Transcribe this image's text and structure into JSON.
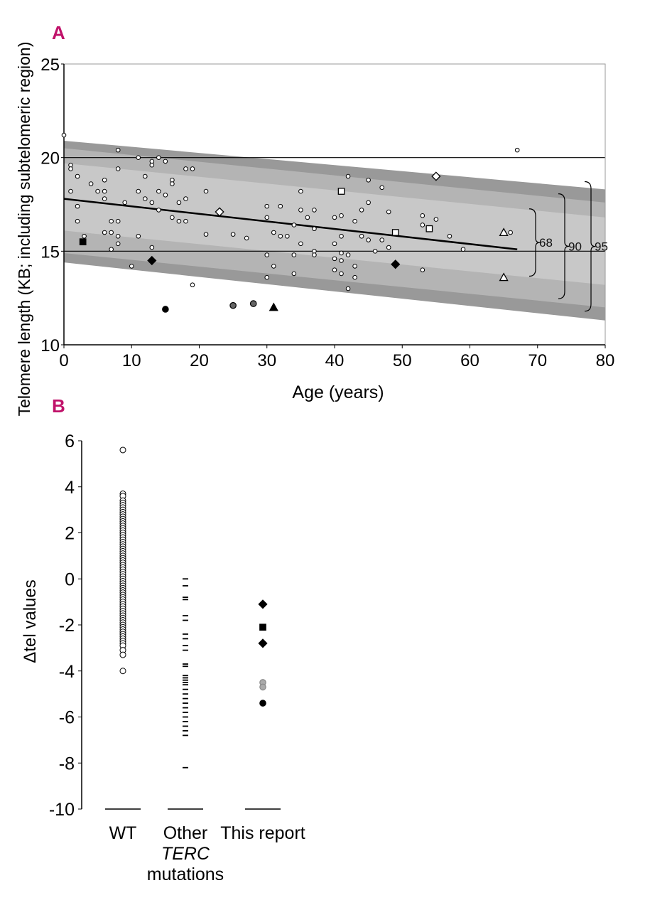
{
  "chart_data": [
    {
      "panel": "A",
      "type": "scatter",
      "xlabel": "Age (years)",
      "ylabel": "Telomere length (KB; including subtelomeric region)",
      "xlim": [
        0,
        80
      ],
      "ylim": [
        10,
        25
      ],
      "xticks": [
        "0",
        "10",
        "20",
        "30",
        "40",
        "50",
        "60",
        "70",
        "80"
      ],
      "yticks": [
        "10",
        "15",
        "20",
        "25"
      ],
      "reference_lines_y": [
        15,
        20
      ],
      "regression_line": {
        "x": [
          0,
          67
        ],
        "y": [
          17.8,
          15.1
        ]
      },
      "percentile_bands": [
        {
          "label": "68",
          "start": [
            0,
            19.7,
            16.1
          ],
          "end": [
            80,
            16.8,
            13.2
          ]
        },
        {
          "label": "90",
          "start": [
            0,
            20.5,
            14.9
          ],
          "end": [
            80,
            17.6,
            12.0
          ]
        },
        {
          "label": "95",
          "start": [
            0,
            20.9,
            14.4
          ],
          "end": [
            80,
            18.3,
            11.3
          ]
        }
      ],
      "band_colors": [
        "#c8c8c8",
        "#b4b4b4",
        "#999999"
      ],
      "bracket_labels": [
        "68",
        "90",
        "95"
      ],
      "wild_type_points": [
        [
          0,
          21.2
        ],
        [
          1,
          19.6
        ],
        [
          1,
          19.4
        ],
        [
          1,
          18.2
        ],
        [
          2,
          17.4
        ],
        [
          2,
          16.6
        ],
        [
          2,
          19.0
        ],
        [
          3,
          15.8
        ],
        [
          4,
          18.6
        ],
        [
          5,
          18.2
        ],
        [
          6,
          18.8
        ],
        [
          6,
          18.2
        ],
        [
          6,
          17.8
        ],
        [
          6,
          16.0
        ],
        [
          7,
          16.6
        ],
        [
          7,
          16.0
        ],
        [
          7,
          15.1
        ],
        [
          8,
          20.4
        ],
        [
          8,
          19.4
        ],
        [
          8,
          16.6
        ],
        [
          8,
          15.8
        ],
        [
          8,
          15.4
        ],
        [
          9,
          17.6
        ],
        [
          10,
          14.2
        ],
        [
          11,
          20.0
        ],
        [
          11,
          18.2
        ],
        [
          11,
          15.8
        ],
        [
          12,
          19.0
        ],
        [
          12,
          17.8
        ],
        [
          13,
          19.8
        ],
        [
          13,
          19.6
        ],
        [
          13,
          17.6
        ],
        [
          13,
          15.2
        ],
        [
          14,
          20.0
        ],
        [
          14,
          18.2
        ],
        [
          14,
          17.2
        ],
        [
          15,
          19.8
        ],
        [
          15,
          18.0
        ],
        [
          16,
          18.8
        ],
        [
          16,
          18.6
        ],
        [
          16,
          16.8
        ],
        [
          17,
          17.6
        ],
        [
          17,
          16.6
        ],
        [
          18,
          19.4
        ],
        [
          18,
          17.8
        ],
        [
          18,
          16.6
        ],
        [
          19,
          19.4
        ],
        [
          19,
          13.2
        ],
        [
          21,
          18.2
        ],
        [
          21,
          15.9
        ],
        [
          25,
          15.9
        ],
        [
          27,
          15.7
        ],
        [
          30,
          17.4
        ],
        [
          30,
          16.8
        ],
        [
          30,
          14.8
        ],
        [
          30,
          13.6
        ],
        [
          31,
          16.0
        ],
        [
          31,
          14.2
        ],
        [
          32,
          17.4
        ],
        [
          32,
          15.8
        ],
        [
          33,
          15.8
        ],
        [
          34,
          16.4
        ],
        [
          34,
          14.8
        ],
        [
          34,
          13.8
        ],
        [
          35,
          18.2
        ],
        [
          35,
          17.2
        ],
        [
          35,
          15.4
        ],
        [
          36,
          16.8
        ],
        [
          37,
          17.2
        ],
        [
          37,
          16.2
        ],
        [
          37,
          15.0
        ],
        [
          37,
          14.8
        ],
        [
          40,
          16.8
        ],
        [
          40,
          15.4
        ],
        [
          40,
          14.6
        ],
        [
          40,
          14.0
        ],
        [
          41,
          16.9
        ],
        [
          41,
          15.8
        ],
        [
          41,
          14.9
        ],
        [
          41,
          14.5
        ],
        [
          41,
          13.8
        ],
        [
          42,
          19.0
        ],
        [
          42,
          14.8
        ],
        [
          42,
          13.0
        ],
        [
          43,
          16.6
        ],
        [
          43,
          14.2
        ],
        [
          43,
          13.6
        ],
        [
          44,
          15.8
        ],
        [
          44,
          17.2
        ],
        [
          45,
          18.8
        ],
        [
          45,
          17.6
        ],
        [
          45,
          15.6
        ],
        [
          46,
          15.0
        ],
        [
          47,
          18.4
        ],
        [
          47,
          15.6
        ],
        [
          48,
          17.1
        ],
        [
          48,
          15.2
        ],
        [
          53,
          16.9
        ],
        [
          53,
          16.4
        ],
        [
          53,
          14.0
        ],
        [
          55,
          16.7
        ],
        [
          57,
          15.8
        ],
        [
          59,
          15.1
        ],
        [
          66,
          16.0
        ],
        [
          67,
          20.4
        ]
      ],
      "special_points": [
        {
          "marker": "square",
          "fill": "#000000",
          "x": 2.8,
          "y": 15.5
        },
        {
          "marker": "diamond",
          "fill": "#000000",
          "x": 13,
          "y": 14.5
        },
        {
          "marker": "circle",
          "fill": "#000000",
          "x": 15,
          "y": 11.9
        },
        {
          "marker": "circle",
          "fill": "#666666",
          "x": 25,
          "y": 12.1
        },
        {
          "marker": "circle",
          "fill": "#666666",
          "x": 28,
          "y": 12.2
        },
        {
          "marker": "triangle",
          "fill": "#000000",
          "x": 31,
          "y": 12.0
        },
        {
          "marker": "diamond",
          "fill": "#000000",
          "x": 49,
          "y": 14.3
        },
        {
          "marker": "square",
          "fill": "#ffffff",
          "x": 41,
          "y": 18.2
        },
        {
          "marker": "square",
          "fill": "#ffffff",
          "x": 49,
          "y": 16.0
        },
        {
          "marker": "square",
          "fill": "#ffffff",
          "x": 54,
          "y": 16.2
        },
        {
          "marker": "diamond",
          "fill": "#ffffff",
          "x": 55,
          "y": 19.0
        },
        {
          "marker": "triangle",
          "fill": "#ffffff",
          "x": 65,
          "y": 16.0
        },
        {
          "marker": "triangle",
          "fill": "#ffffff",
          "x": 65,
          "y": 13.6
        },
        {
          "marker": "diamond",
          "fill": "#ffffff",
          "x": 23,
          "y": 17.1
        }
      ]
    },
    {
      "panel": "B",
      "type": "strip",
      "ylabel": "Δtel values",
      "ylim": [
        -10,
        6
      ],
      "yticks": [
        "6",
        "4",
        "2",
        "0",
        "-2",
        "-4",
        "-6",
        "-8",
        "-10"
      ],
      "categories": [
        "WT",
        "Other TERC mutations",
        "This report"
      ],
      "category_lines": [
        "WT",
        [
          "Other",
          "TERC",
          "mutations"
        ],
        "This report"
      ],
      "series": [
        {
          "name": "WT",
          "marker": "open-circle",
          "values": [
            5.6,
            3.7,
            3.6,
            3.4,
            3.3,
            3.2,
            3.1,
            3.0,
            2.9,
            2.8,
            2.7,
            2.6,
            2.5,
            2.4,
            2.3,
            2.2,
            2.1,
            2.0,
            1.9,
            1.8,
            1.7,
            1.6,
            1.5,
            1.4,
            1.3,
            1.2,
            1.1,
            1.0,
            0.9,
            0.8,
            0.7,
            0.6,
            0.5,
            0.4,
            0.3,
            0.2,
            0.1,
            0.0,
            -0.1,
            -0.2,
            -0.3,
            -0.4,
            -0.5,
            -0.6,
            -0.7,
            -0.8,
            -0.9,
            -1.0,
            -1.1,
            -1.2,
            -1.3,
            -1.4,
            -1.5,
            -1.6,
            -1.7,
            -1.8,
            -1.9,
            -2.0,
            -2.1,
            -2.2,
            -2.3,
            -2.4,
            -2.5,
            -2.6,
            -2.7,
            -2.8,
            -2.9,
            -3.1,
            -3.3,
            -4.0
          ]
        },
        {
          "name": "Other TERC mutations",
          "marker": "dash",
          "values": [
            0.0,
            -0.3,
            -0.8,
            -0.9,
            -1.6,
            -1.8,
            -2.4,
            -2.6,
            -2.9,
            -3.1,
            -3.7,
            -3.8,
            -4.2,
            -4.3,
            -4.4,
            -4.5,
            -4.6,
            -4.8,
            -5.0,
            -5.2,
            -5.4,
            -5.6,
            -5.8,
            -6.0,
            -6.2,
            -6.4,
            -6.6,
            -6.8,
            -8.2
          ]
        },
        {
          "name": "This report",
          "points": [
            {
              "value": -1.1,
              "marker": "diamond",
              "fill": "#000000"
            },
            {
              "value": -2.1,
              "marker": "square",
              "fill": "#000000"
            },
            {
              "value": -2.8,
              "marker": "diamond",
              "fill": "#000000"
            },
            {
              "value": -4.5,
              "marker": "circle",
              "fill": "#aaaaaa"
            },
            {
              "value": -4.7,
              "marker": "circle",
              "fill": "#aaaaaa"
            },
            {
              "value": -5.4,
              "marker": "circle",
              "fill": "#000000"
            }
          ]
        }
      ]
    }
  ]
}
